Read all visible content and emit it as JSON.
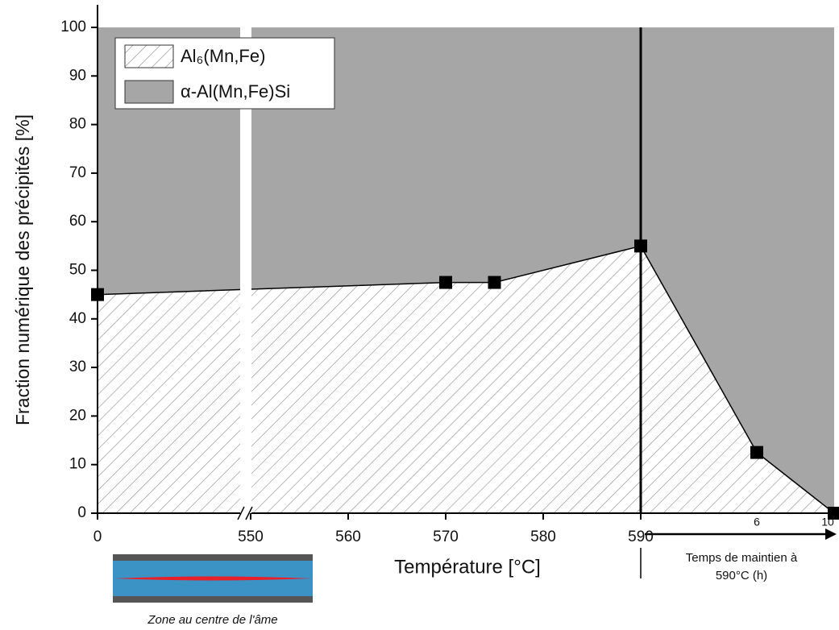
{
  "chart_data": {
    "type": "area",
    "ylabel": "Fraction numérique des précipités [%]",
    "ylim": [
      0,
      100
    ],
    "yticks": [
      0,
      10,
      20,
      30,
      40,
      50,
      60,
      70,
      80,
      90,
      100
    ],
    "xlabel": "Température [°C]",
    "xlim": [
      550,
      590
    ],
    "xticks": [
      0,
      550,
      560,
      570,
      580,
      590
    ],
    "x_break": true,
    "x": [
      0,
      570,
      575,
      590
    ],
    "x2label": [
      "Temps de maintien à",
      "590°C (h)"
    ],
    "x2lim": [
      0,
      10
    ],
    "x2ticks": [
      6,
      10
    ],
    "x2": [
      6,
      10
    ],
    "series": [
      {
        "name": "Al₆(Mn,Fe)",
        "pattern": "hatch",
        "color": "#ffffff",
        "values": [
          45,
          47.5,
          47.5,
          55
        ],
        "values2": [
          12.5,
          0
        ]
      },
      {
        "name": "α-Al(Mn,Fe)Si",
        "color": "#a6a6a6",
        "values": [
          55,
          52.5,
          52.5,
          45
        ],
        "values2": [
          87.5,
          100
        ]
      }
    ],
    "inset_caption": "Zone au centre de l'âme"
  }
}
